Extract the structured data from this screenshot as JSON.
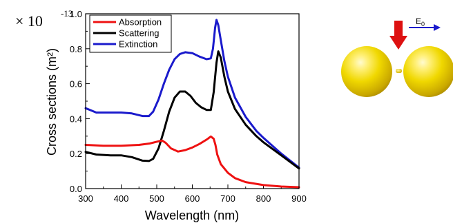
{
  "chart_data": {
    "type": "line",
    "title": "",
    "xlabel": "Wavelength (nm)",
    "ylabel": "Cross sections (m²)",
    "y_scale_factor": "× 10",
    "y_scale_exponent": "-13",
    "xlim": [
      300,
      900
    ],
    "ylim": [
      0.0,
      1.0
    ],
    "x_ticks": [
      300,
      400,
      500,
      600,
      700,
      800,
      900
    ],
    "y_ticks": [
      "0.0",
      "0.2",
      "0.4",
      "0.6",
      "0.8",
      "1.0"
    ],
    "grid": false,
    "legend_position": "top-left",
    "series": [
      {
        "name": "Absorption",
        "color": "#ee1111",
        "points": [
          [
            300,
            0.25
          ],
          [
            350,
            0.245
          ],
          [
            400,
            0.245
          ],
          [
            450,
            0.25
          ],
          [
            480,
            0.258
          ],
          [
            500,
            0.268
          ],
          [
            515,
            0.275
          ],
          [
            525,
            0.262
          ],
          [
            540,
            0.23
          ],
          [
            560,
            0.212
          ],
          [
            580,
            0.22
          ],
          [
            600,
            0.235
          ],
          [
            620,
            0.255
          ],
          [
            640,
            0.28
          ],
          [
            652,
            0.298
          ],
          [
            660,
            0.285
          ],
          [
            665,
            0.25
          ],
          [
            670,
            0.195
          ],
          [
            680,
            0.14
          ],
          [
            700,
            0.09
          ],
          [
            720,
            0.06
          ],
          [
            750,
            0.037
          ],
          [
            800,
            0.02
          ],
          [
            850,
            0.012
          ],
          [
            900,
            0.008
          ]
        ]
      },
      {
        "name": "Scattering",
        "color": "#000000",
        "points": [
          [
            300,
            0.21
          ],
          [
            330,
            0.195
          ],
          [
            370,
            0.19
          ],
          [
            400,
            0.19
          ],
          [
            430,
            0.18
          ],
          [
            460,
            0.16
          ],
          [
            478,
            0.158
          ],
          [
            490,
            0.17
          ],
          [
            505,
            0.23
          ],
          [
            520,
            0.33
          ],
          [
            535,
            0.44
          ],
          [
            550,
            0.52
          ],
          [
            565,
            0.555
          ],
          [
            580,
            0.555
          ],
          [
            595,
            0.53
          ],
          [
            610,
            0.49
          ],
          [
            625,
            0.465
          ],
          [
            640,
            0.45
          ],
          [
            652,
            0.45
          ],
          [
            660,
            0.55
          ],
          [
            668,
            0.72
          ],
          [
            673,
            0.785
          ],
          [
            680,
            0.75
          ],
          [
            690,
            0.64
          ],
          [
            700,
            0.555
          ],
          [
            720,
            0.455
          ],
          [
            750,
            0.365
          ],
          [
            780,
            0.3
          ],
          [
            800,
            0.265
          ],
          [
            850,
            0.19
          ],
          [
            900,
            0.115
          ]
        ]
      },
      {
        "name": "Extinction",
        "color": "#1a1acc",
        "points": [
          [
            300,
            0.46
          ],
          [
            330,
            0.435
          ],
          [
            370,
            0.435
          ],
          [
            400,
            0.435
          ],
          [
            430,
            0.43
          ],
          [
            460,
            0.415
          ],
          [
            478,
            0.415
          ],
          [
            490,
            0.44
          ],
          [
            505,
            0.51
          ],
          [
            520,
            0.6
          ],
          [
            535,
            0.68
          ],
          [
            550,
            0.74
          ],
          [
            565,
            0.77
          ],
          [
            580,
            0.78
          ],
          [
            600,
            0.775
          ],
          [
            620,
            0.755
          ],
          [
            640,
            0.74
          ],
          [
            652,
            0.745
          ],
          [
            658,
            0.8
          ],
          [
            664,
            0.92
          ],
          [
            668,
            0.965
          ],
          [
            673,
            0.935
          ],
          [
            680,
            0.85
          ],
          [
            690,
            0.73
          ],
          [
            700,
            0.64
          ],
          [
            720,
            0.52
          ],
          [
            750,
            0.41
          ],
          [
            780,
            0.33
          ],
          [
            800,
            0.29
          ],
          [
            850,
            0.2
          ],
          [
            900,
            0.12
          ]
        ]
      }
    ]
  },
  "illustration": {
    "field_label": "E",
    "field_subscript": "0",
    "colors": {
      "sphere": "#f0d800",
      "sphere_shadow": "#b89a00",
      "arrow_red": "#dd1111",
      "field_arrow": "#1a1acc"
    }
  }
}
